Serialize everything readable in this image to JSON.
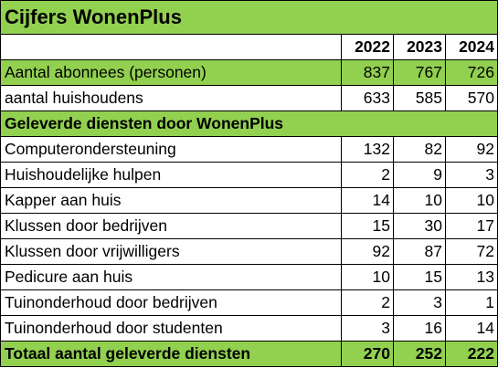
{
  "title": "Cijfers WonenPlus",
  "years": [
    "2022",
    "2023",
    "2024"
  ],
  "top_rows": [
    {
      "label": "Aantal abonnees (personen)",
      "values": [
        "837",
        "767",
        "726"
      ],
      "highlight": true
    },
    {
      "label": "aantal huishoudens",
      "values": [
        "633",
        "585",
        "570"
      ],
      "highlight": false
    }
  ],
  "section_header": "Geleverde diensten door WonenPlus",
  "service_rows": [
    {
      "label": "Computerondersteuning",
      "values": [
        "132",
        "82",
        "92"
      ]
    },
    {
      "label": "Huishoudelijke hulpen",
      "values": [
        "2",
        "9",
        "3"
      ]
    },
    {
      "label": "Kapper aan huis",
      "values": [
        "14",
        "10",
        "10"
      ]
    },
    {
      "label": "Klussen door bedrijven",
      "values": [
        "15",
        "30",
        "17"
      ]
    },
    {
      "label": "Klussen door vrijwilligers",
      "values": [
        "92",
        "87",
        "72"
      ]
    },
    {
      "label": "Pedicure aan huis",
      "values": [
        "10",
        "15",
        "13"
      ]
    },
    {
      "label": "Tuinonderhoud door bedrijven",
      "values": [
        "2",
        "3",
        "1"
      ]
    },
    {
      "label": "Tuinonderhoud door studenten",
      "values": [
        "3",
        "16",
        "14"
      ]
    }
  ],
  "total_row": {
    "label": "Totaal aantal geleverde diensten",
    "values": [
      "270",
      "252",
      "222"
    ]
  },
  "colors": {
    "green": "#92d050",
    "border": "#000000"
  }
}
